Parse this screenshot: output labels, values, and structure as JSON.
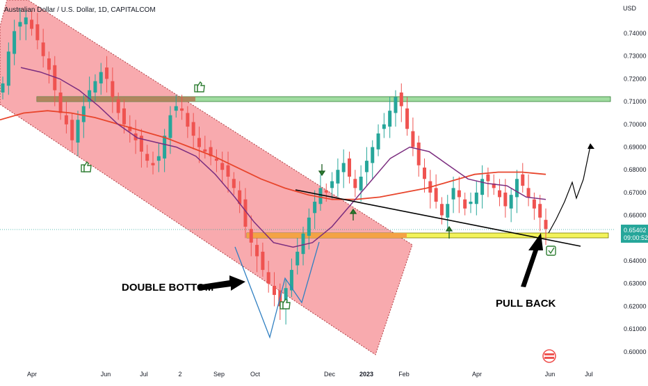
{
  "header": {
    "title": "Australian Dollar / U.S. Dollar, 1D, CAPITALCOM",
    "currency": "USD"
  },
  "price_tag": {
    "price": "0.65402",
    "countdown": "09:00:52"
  },
  "chart_data": {
    "type": "candlestick",
    "ylim": [
      0.595,
      0.755
    ],
    "y_ticks": [
      "0.74000",
      "0.73000",
      "0.72000",
      "0.71000",
      "0.70000",
      "0.69000",
      "0.68000",
      "0.67000",
      "0.66000",
      "0.65000",
      "0.64000",
      "0.63000",
      "0.62000",
      "0.61000",
      "0.60000"
    ],
    "x_ticks": [
      "Apr",
      "Jun",
      "Jul",
      "2",
      "Sep",
      "Oct",
      "Dec",
      "2023",
      "Feb",
      "Apr",
      "Jun",
      "Jul"
    ],
    "colors": {
      "up": "#26a69a",
      "down": "#ef5350",
      "ma_fast": "#7b2d7f",
      "ma_slow": "#e8452c",
      "channel": "#f47c82",
      "resistance": "#8fd68f",
      "support": "#f3f35a"
    },
    "ohlc_close": [
      0.718,
      0.732,
      0.741,
      0.745,
      0.747,
      0.742,
      0.737,
      0.73,
      0.724,
      0.715,
      0.705,
      0.7,
      0.693,
      0.702,
      0.708,
      0.715,
      0.719,
      0.723,
      0.72,
      0.712,
      0.705,
      0.7,
      0.697,
      0.693,
      0.688,
      0.684,
      0.682,
      0.686,
      0.695,
      0.704,
      0.708,
      0.706,
      0.699,
      0.695,
      0.69,
      0.688,
      0.686,
      0.684,
      0.68,
      0.677,
      0.672,
      0.665,
      0.655,
      0.648,
      0.642,
      0.636,
      0.63,
      0.625,
      0.62,
      0.628,
      0.636,
      0.644,
      0.652,
      0.659,
      0.666,
      0.672,
      0.67,
      0.675,
      0.68,
      0.683,
      0.677,
      0.672,
      0.677,
      0.684,
      0.69,
      0.696,
      0.7,
      0.706,
      0.712,
      0.708,
      0.698,
      0.69,
      0.682,
      0.676,
      0.67,
      0.666,
      0.66,
      0.665,
      0.672,
      0.668,
      0.663,
      0.666,
      0.67,
      0.676,
      0.675,
      0.672,
      0.668,
      0.664,
      0.669,
      0.676,
      0.673,
      0.668,
      0.663,
      0.659,
      0.654
    ],
    "ma_fast": [
      0.725,
      0.723,
      0.72,
      0.715,
      0.708,
      0.7,
      0.694,
      0.692,
      0.69,
      0.686,
      0.678,
      0.668,
      0.657,
      0.648,
      0.646,
      0.648,
      0.655,
      0.665,
      0.675,
      0.685,
      0.69,
      0.688,
      0.682,
      0.676,
      0.674,
      0.673,
      0.668,
      0.667
    ],
    "ma_slow": [
      0.702,
      0.705,
      0.706,
      0.705,
      0.703,
      0.7,
      0.697,
      0.694,
      0.69,
      0.686,
      0.681,
      0.676,
      0.672,
      0.669,
      0.667,
      0.667,
      0.668,
      0.67,
      0.672,
      0.675,
      0.678,
      0.679,
      0.679,
      0.678
    ],
    "annotations": [
      "DOUBLE BOTTOM",
      "PULL BACK"
    ]
  }
}
